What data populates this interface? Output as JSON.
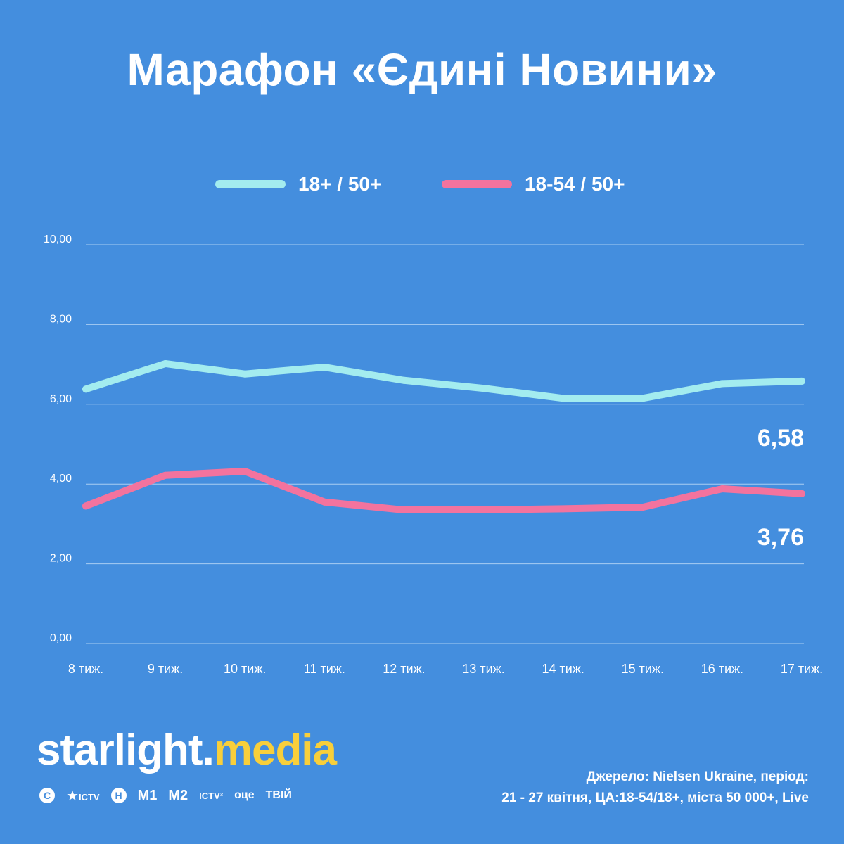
{
  "title": "Марафон «Єдині Новини»",
  "colors": {
    "background": "#448ede",
    "series1": "#a3ecef",
    "series2": "#f3739e",
    "brand_accent": "#f8cf3b",
    "grid": "#a9cdf2"
  },
  "chart_data": {
    "type": "line",
    "title": "Марафон «Єдині Новини»",
    "xlabel": "",
    "ylabel": "",
    "categories": [
      "8 тиж.",
      "9 тиж.",
      "10 тиж.",
      "11 тиж.",
      "12 тиж.",
      "13 тиж.",
      "14 тиж.",
      "15 тиж.",
      "16 тиж.",
      "17 тиж."
    ],
    "ylim": [
      0,
      10
    ],
    "yticks": [
      "0,00",
      "2,00",
      "4,00",
      "6,00",
      "8,00",
      "10,00"
    ],
    "yticks_values": [
      0,
      2,
      4,
      6,
      8,
      10
    ],
    "grid": true,
    "legend_position": "top-center",
    "series": [
      {
        "name": "18+ / 50+",
        "color": "#a3ecef",
        "values": [
          6.38,
          7.02,
          6.76,
          6.93,
          6.6,
          6.4,
          6.15,
          6.15,
          6.52,
          6.58
        ],
        "end_label": "6,58"
      },
      {
        "name": "18-54 / 50+",
        "color": "#f3739e",
        "values": [
          3.45,
          4.22,
          4.32,
          3.55,
          3.35,
          3.35,
          3.38,
          3.42,
          3.88,
          3.76
        ],
        "end_label": "3,76"
      }
    ]
  },
  "brand": {
    "name_part1": "starlight",
    "dot": ".",
    "name_part2": "media"
  },
  "channels": {
    "stb": "С",
    "ictv": "ICTV",
    "novy": "Н",
    "m1": "M1",
    "m2": "M2",
    "ictv2": "ICTV²",
    "oce": "оце",
    "tviy": "ТВІЙ"
  },
  "source": {
    "line1": "Джерело: Nielsen Ukraine, період:",
    "line2": "21 - 27 квітня, ЦА:18-54/18+, міста 50 000+, Live"
  }
}
